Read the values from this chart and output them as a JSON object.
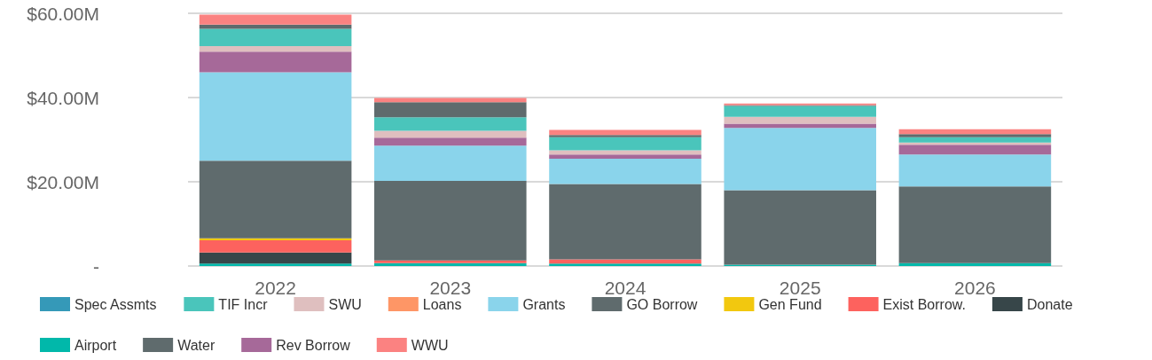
{
  "chart_data": {
    "type": "bar",
    "stacked": true,
    "categories": [
      "2022",
      "2023",
      "2024",
      "2025",
      "2026"
    ],
    "series": [
      {
        "name": "Airport",
        "color": "#01b8aa",
        "values": [
          0.6,
          0.7,
          0.6,
          0.3,
          0.7
        ]
      },
      {
        "name": "Donate",
        "color": "#374649",
        "values": [
          2.6,
          0,
          0,
          0,
          0
        ]
      },
      {
        "name": "Exist Borrow.",
        "color": "#fd625e",
        "values": [
          2.9,
          0.6,
          1.0,
          0,
          0
        ]
      },
      {
        "name": "Gen Fund",
        "color": "#f2c80f",
        "values": [
          0.5,
          0,
          0,
          0,
          0
        ]
      },
      {
        "name": "Loans",
        "color": "#fe9666",
        "values": [
          0,
          0,
          0,
          0,
          0
        ]
      },
      {
        "name": "GO Borrow",
        "color": "#5f6b6d",
        "values": [
          18.4,
          18.9,
          17.9,
          17.7,
          18.2
        ]
      },
      {
        "name": "Grants",
        "color": "#8ad4eb",
        "values": [
          21.0,
          8.4,
          6.0,
          14.8,
          7.6
        ]
      },
      {
        "name": "Rev Borrow",
        "color": "#a66999",
        "values": [
          4.9,
          1.9,
          1.0,
          1.0,
          2.3
        ]
      },
      {
        "name": "SWU",
        "color": "#dfbfbf",
        "values": [
          1.3,
          1.6,
          1.0,
          1.6,
          0.5
        ]
      },
      {
        "name": "Spec Assmts",
        "color": "#3599b8",
        "values": [
          0,
          0,
          0,
          0,
          0
        ]
      },
      {
        "name": "TIF Incr",
        "color": "#4ac5bb",
        "values": [
          4.1,
          3.2,
          3.1,
          2.6,
          1.3
        ]
      },
      {
        "name": "Water",
        "color": "#5f6b6d",
        "values": [
          1.0,
          3.6,
          0.5,
          0.2,
          0.7
        ]
      },
      {
        "name": "WWU",
        "color": "#fb8281",
        "values": [
          2.4,
          1.0,
          1.2,
          0.4,
          1.2
        ]
      }
    ],
    "ylim": [
      0,
      60
    ],
    "yticks": [
      {
        "value": 0,
        "label": "-"
      },
      {
        "value": 20,
        "label": "$20.00M"
      },
      {
        "value": 40,
        "label": "$40.00M"
      },
      {
        "value": 60,
        "label": "$60.00M"
      }
    ],
    "grid": "y",
    "legend": "bottom"
  }
}
